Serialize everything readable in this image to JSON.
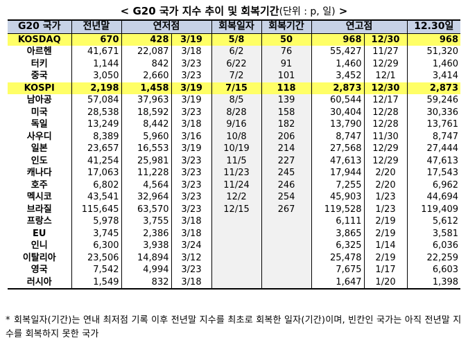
{
  "title": {
    "main": "< G20 국가 지수 추이 및 회복기간",
    "unit": "(단위 : p, 일)",
    "close": " >"
  },
  "table": {
    "headers": [
      "G20 국가",
      "전년말",
      "연저점",
      "",
      "회복일자",
      "회복기간",
      "연고점",
      "",
      "12.30일"
    ],
    "rows": [
      {
        "country": "KOSDAQ",
        "prev_year_end": "670",
        "low": "428",
        "low_date": "3/19",
        "recovery_date": "5/8",
        "recovery_period": "50",
        "high": "968",
        "high_date": "12/30",
        "dec30": "968",
        "highlight": true
      },
      {
        "country": "아르헨",
        "prev_year_end": "41,671",
        "low": "22,087",
        "low_date": "3/18",
        "recovery_date": "6/2",
        "recovery_period": "76",
        "high": "55,427",
        "high_date": "11/27",
        "dec30": "51,320",
        "highlight": false
      },
      {
        "country": "터키",
        "prev_year_end": "1,144",
        "low": "842",
        "low_date": "3/23",
        "recovery_date": "6/22",
        "recovery_period": "91",
        "high": "1,460",
        "high_date": "12/29",
        "dec30": "1,460",
        "highlight": false
      },
      {
        "country": "중국",
        "prev_year_end": "3,050",
        "low": "2,660",
        "low_date": "3/23",
        "recovery_date": "7/2",
        "recovery_period": "101",
        "high": "3,452",
        "high_date": "12/1",
        "dec30": "3,414",
        "highlight": false
      },
      {
        "country": "KOSPI",
        "prev_year_end": "2,198",
        "low": "1,458",
        "low_date": "3/19",
        "recovery_date": "7/15",
        "recovery_period": "118",
        "high": "2,873",
        "high_date": "12/30",
        "dec30": "2,873",
        "highlight": true
      },
      {
        "country": "남아공",
        "prev_year_end": "57,084",
        "low": "37,963",
        "low_date": "3/19",
        "recovery_date": "8/5",
        "recovery_period": "139",
        "high": "60,544",
        "high_date": "12/17",
        "dec30": "59,246",
        "highlight": false
      },
      {
        "country": "미국",
        "prev_year_end": "28,538",
        "low": "18,592",
        "low_date": "3/23",
        "recovery_date": "8/28",
        "recovery_period": "158",
        "high": "30,404",
        "high_date": "12/28",
        "dec30": "30,336",
        "highlight": false
      },
      {
        "country": "독일",
        "prev_year_end": "13,249",
        "low": "8,442",
        "low_date": "3/18",
        "recovery_date": "9/16",
        "recovery_period": "182",
        "high": "13,790",
        "high_date": "12/28",
        "dec30": "13,761",
        "highlight": false
      },
      {
        "country": "사우디",
        "prev_year_end": "8,389",
        "low": "5,960",
        "low_date": "3/16",
        "recovery_date": "10/8",
        "recovery_period": "206",
        "high": "8,747",
        "high_date": "11/30",
        "dec30": "8,747",
        "highlight": false
      },
      {
        "country": "일본",
        "prev_year_end": "23,657",
        "low": "16,553",
        "low_date": "3/19",
        "recovery_date": "10/19",
        "recovery_period": "214",
        "high": "27,568",
        "high_date": "12/29",
        "dec30": "27,444",
        "highlight": false
      },
      {
        "country": "인도",
        "prev_year_end": "41,254",
        "low": "25,981",
        "low_date": "3/23",
        "recovery_date": "11/5",
        "recovery_period": "227",
        "high": "47,613",
        "high_date": "12/29",
        "dec30": "47,613",
        "highlight": false
      },
      {
        "country": "캐나다",
        "prev_year_end": "17,063",
        "low": "11,228",
        "low_date": "3/23",
        "recovery_date": "11/23",
        "recovery_period": "245",
        "high": "17,944",
        "high_date": "2/20",
        "dec30": "17,543",
        "highlight": false
      },
      {
        "country": "호주",
        "prev_year_end": "6,802",
        "low": "4,564",
        "low_date": "3/23",
        "recovery_date": "11/24",
        "recovery_period": "246",
        "high": "7,255",
        "high_date": "2/20",
        "dec30": "6,962",
        "highlight": false
      },
      {
        "country": "멕시코",
        "prev_year_end": "43,541",
        "low": "32,964",
        "low_date": "3/23",
        "recovery_date": "12/2",
        "recovery_period": "254",
        "high": "45,903",
        "high_date": "1/23",
        "dec30": "44,694",
        "highlight": false
      },
      {
        "country": "브라질",
        "prev_year_end": "115,645",
        "low": "63,570",
        "low_date": "3/23",
        "recovery_date": "12/15",
        "recovery_period": "267",
        "high": "119,528",
        "high_date": "1/23",
        "dec30": "119,409",
        "highlight": false
      },
      {
        "country": "프랑스",
        "prev_year_end": "5,978",
        "low": "3,755",
        "low_date": "3/18",
        "recovery_date": "",
        "recovery_period": "",
        "high": "6,111",
        "high_date": "2/19",
        "dec30": "5,612",
        "highlight": false
      },
      {
        "country": "EU",
        "prev_year_end": "3,745",
        "low": "2,386",
        "low_date": "3/18",
        "recovery_date": "",
        "recovery_period": "",
        "high": "3,865",
        "high_date": "2/19",
        "dec30": "3,581",
        "highlight": false
      },
      {
        "country": "인니",
        "prev_year_end": "6,300",
        "low": "3,938",
        "low_date": "3/24",
        "recovery_date": "",
        "recovery_period": "",
        "high": "6,325",
        "high_date": "1/14",
        "dec30": "6,036",
        "highlight": false
      },
      {
        "country": "이탈리아",
        "prev_year_end": "23,506",
        "low": "14,894",
        "low_date": "3/12",
        "recovery_date": "",
        "recovery_period": "",
        "high": "25,478",
        "high_date": "2/19",
        "dec30": "22,259",
        "highlight": false
      },
      {
        "country": "영국",
        "prev_year_end": "7,542",
        "low": "4,994",
        "low_date": "3/23",
        "recovery_date": "",
        "recovery_period": "",
        "high": "7,675",
        "high_date": "1/17",
        "dec30": "6,603",
        "highlight": false
      },
      {
        "country": "러시아",
        "prev_year_end": "1,549",
        "low": "832",
        "low_date": "3/18",
        "recovery_date": "",
        "recovery_period": "",
        "high": "1,647",
        "high_date": "1/20",
        "dec30": "1,398",
        "highlight": false
      }
    ]
  },
  "footnote": {
    "mark": "*",
    "text": "회복일자(기간)는 연내 최저점 기록 이후 전년말 지수를 최초로 회복한 일자(기간)이며, 빈칸인 국가는 아직 전년말 지수를 회복하지 못한 국가"
  },
  "colors": {
    "header_bg": "#c7d2e6",
    "highlight_bg": "#ffff66",
    "recovery_bg": "#f1f1f1"
  }
}
